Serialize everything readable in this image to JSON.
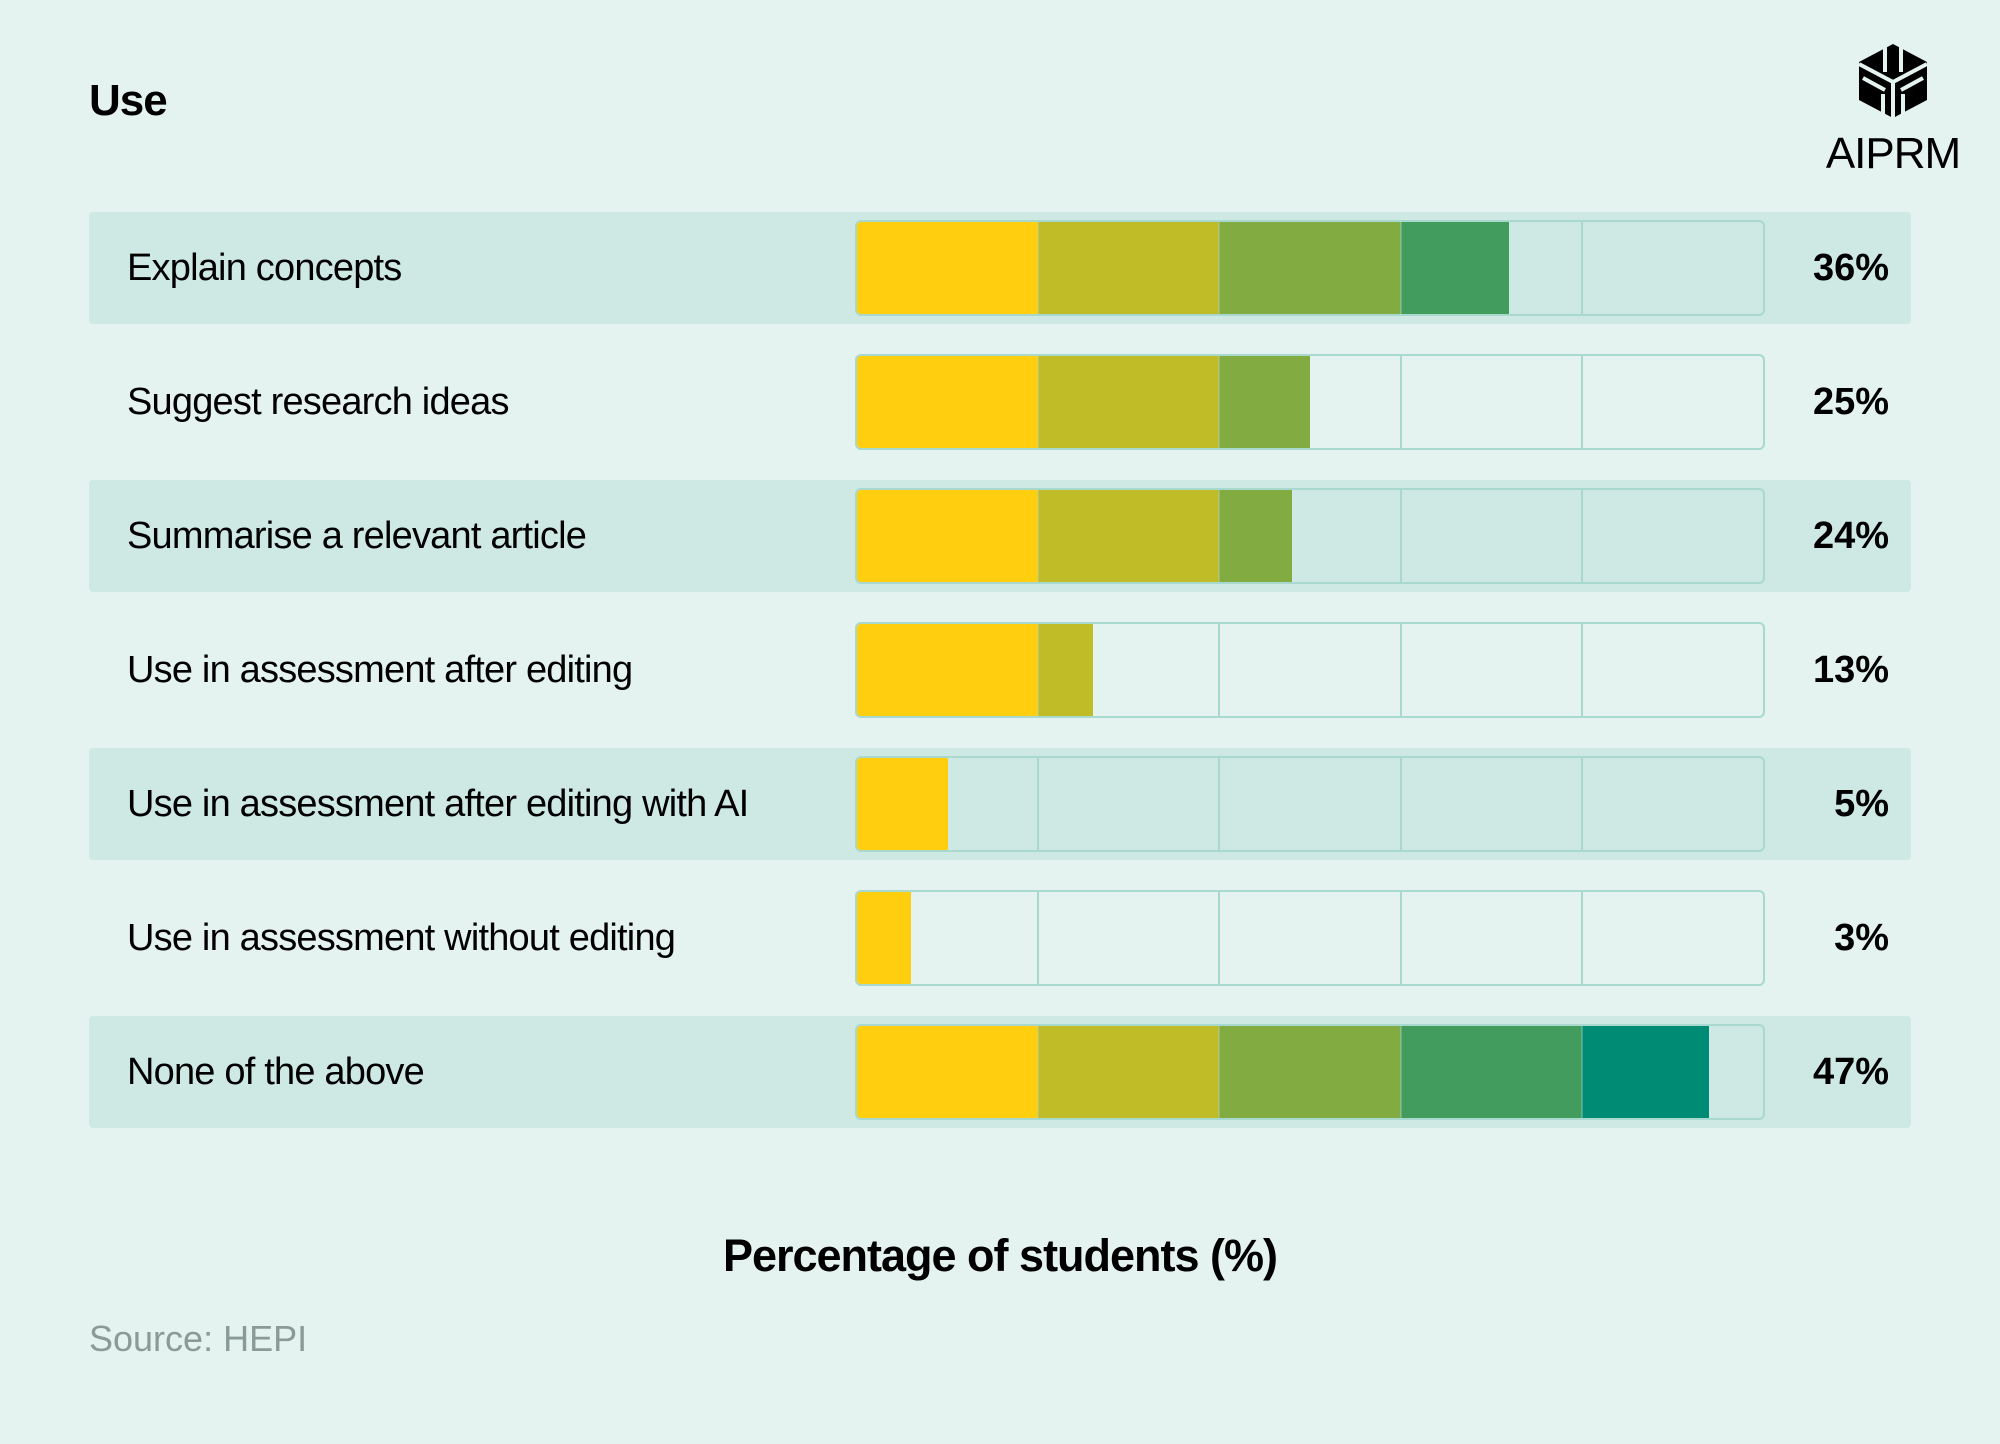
{
  "chart_data": {
    "type": "bar",
    "orientation": "horizontal",
    "title": "Use",
    "xlabel": "Percentage of students (%)",
    "xlim": [
      0,
      50
    ],
    "grid_step": 10,
    "categories": [
      "Explain concepts",
      "Suggest research ideas",
      "Summarise a relevant article",
      "Use in assessment after editing",
      "Use in assessment after editing with AI",
      "Use in assessment without editing",
      "None of the above"
    ],
    "values": [
      36,
      25,
      24,
      13,
      5,
      3,
      47
    ],
    "value_labels": [
      "36%",
      "25%",
      "24%",
      "13%",
      "5%",
      "3%",
      "47%"
    ],
    "segment_colors": [
      "#FFCF0F",
      "#C0BC28",
      "#82AC42",
      "#429C5E",
      "#008B74"
    ],
    "source": "Source: HEPI"
  },
  "logo": {
    "text": "AIPRM"
  }
}
